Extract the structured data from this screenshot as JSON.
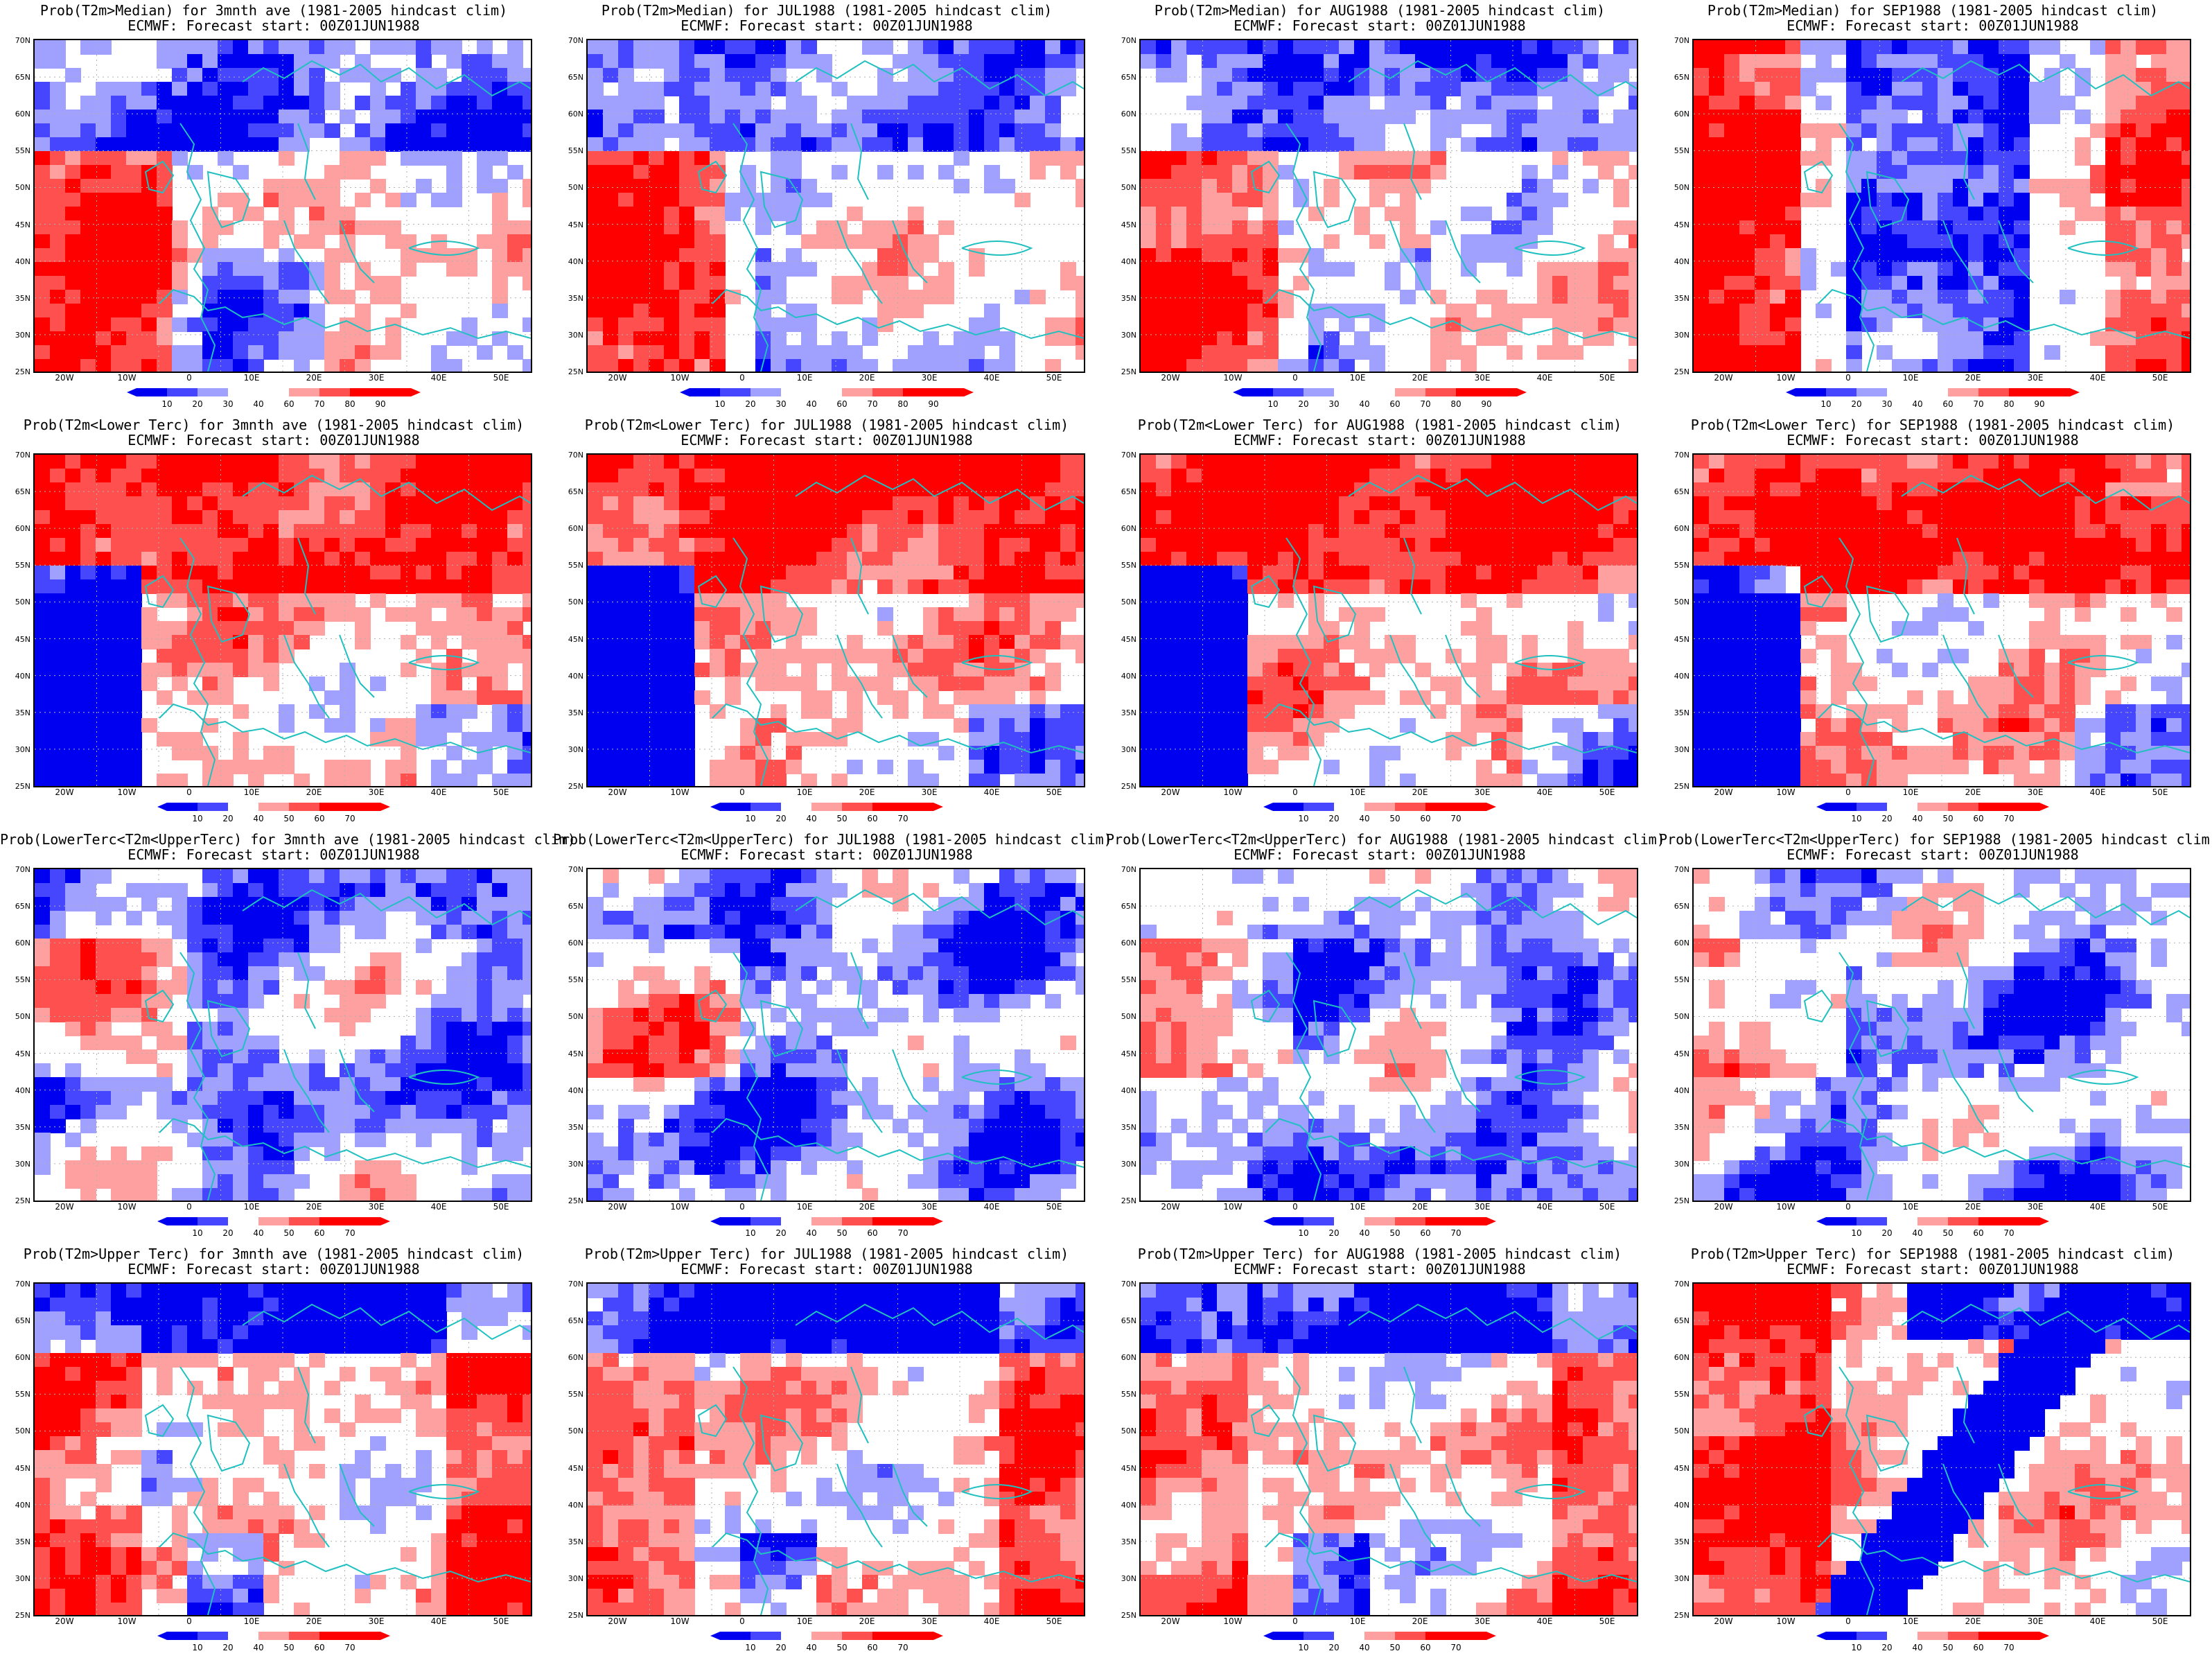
{
  "figure": {
    "colors": {
      "blue_dark": "#0000f0",
      "blue_mid": "#4646ff",
      "blue_light": "#a0a0ff",
      "red_light": "#ffa0a0",
      "red_mid": "#ff5050",
      "red_dark": "#ff0000",
      "coast": "#20c0c0",
      "grid": "#b0b0b0"
    },
    "y_ticks": [
      "70N",
      "65N",
      "60N",
      "55N",
      "50N",
      "45N",
      "40N",
      "35N",
      "30N",
      "25N"
    ],
    "x_ticks": [
      "20W",
      "10W",
      "0",
      "10E",
      "20E",
      "30E",
      "40E",
      "50E"
    ],
    "colorbar_sets": {
      "median": [
        "10",
        "20",
        "30",
        "40",
        "60",
        "70",
        "80",
        "90"
      ],
      "tercile": [
        "10",
        "20",
        "40",
        "50",
        "60",
        "70"
      ]
    },
    "rows": [
      {
        "cb": "median",
        "panels": [
          {
            "title": "Prob(T2m>Median) for 3mnth ave (1981-2005 hindcast clim)",
            "sub": "ECMWF: Forecast start: 00Z01JUN1988",
            "pattern": "mixed_bluenorth"
          },
          {
            "title": "Prob(T2m>Median) for JUL1988 (1981-2005 hindcast clim)",
            "sub": "ECMWF: Forecast start: 00Z01JUN1988",
            "pattern": "mixed_bluenorth"
          },
          {
            "title": "Prob(T2m>Median) for AUG1988 (1981-2005 hindcast clim)",
            "sub": "ECMWF: Forecast start: 00Z01JUN1988",
            "pattern": "mixed_bluenorth"
          },
          {
            "title": "Prob(T2m>Median) for SEP1988 (1981-2005 hindcast clim)",
            "sub": "ECMWF: Forecast start: 00Z01JUN1988",
            "pattern": "blue_center"
          }
        ]
      },
      {
        "cb": "tercile",
        "panels": [
          {
            "title": "Prob(T2m<Lower Terc) for 3mnth ave (1981-2005 hindcast clim)",
            "sub": "ECMWF: Forecast start: 00Z01JUN1988",
            "pattern": "red_with_blue_west"
          },
          {
            "title": "Prob(T2m<Lower Terc) for JUL1988 (1981-2005 hindcast clim)",
            "sub": "ECMWF: Forecast start: 00Z01JUN1988",
            "pattern": "red_with_blue_west"
          },
          {
            "title": "Prob(T2m<Lower Terc) for AUG1988 (1981-2005 hindcast clim)",
            "sub": "ECMWF: Forecast start: 00Z01JUN1988",
            "pattern": "red_with_blue_west"
          },
          {
            "title": "Prob(T2m<Lower Terc) for SEP1988 (1981-2005 hindcast clim)",
            "sub": "ECMWF: Forecast start: 00Z01JUN1988",
            "pattern": "red_with_blue_west"
          }
        ]
      },
      {
        "cb": "tercile",
        "panels": [
          {
            "title": "Prob(LowerTerc<T2m<UpperTerc) for 3mnth ave (1981-2005 hindcast clim)",
            "sub": "ECMWF: Forecast start: 00Z01JUN1988",
            "pattern": "blue_patchy"
          },
          {
            "title": "Prob(LowerTerc<T2m<UpperTerc) for JUL1988 (1981-2005 hindcast clim)",
            "sub": "ECMWF: Forecast start: 00Z01JUN1988",
            "pattern": "blue_patchy"
          },
          {
            "title": "Prob(LowerTerc<T2m<UpperTerc) for AUG1988 (1981-2005 hindcast clim)",
            "sub": "ECMWF: Forecast start: 00Z01JUN1988",
            "pattern": "blue_patchy"
          },
          {
            "title": "Prob(LowerTerc<T2m<UpperTerc) for SEP1988 (1981-2005 hindcast clim)",
            "sub": "ECMWF: Forecast start: 00Z01JUN1988",
            "pattern": "blue_patchy"
          }
        ]
      },
      {
        "cb": "tercile",
        "panels": [
          {
            "title": "Prob(T2m>Upper Terc) for 3mnth ave (1981-2005 hindcast clim)",
            "sub": "ECMWF: Forecast start: 00Z01JUN1988",
            "pattern": "red_with_blue_north"
          },
          {
            "title": "Prob(T2m>Upper Terc) for JUL1988 (1981-2005 hindcast clim)",
            "sub": "ECMWF: Forecast start: 00Z01JUN1988",
            "pattern": "red_with_blue_north"
          },
          {
            "title": "Prob(T2m>Upper Terc) for AUG1988 (1981-2005 hindcast clim)",
            "sub": "ECMWF: Forecast start: 00Z01JUN1988",
            "pattern": "red_with_blue_north"
          },
          {
            "title": "Prob(T2m>Upper Terc) for SEP1988 (1981-2005 hindcast clim)",
            "sub": "ECMWF: Forecast start: 00Z01JUN1988",
            "pattern": "blue_band"
          }
        ]
      }
    ]
  }
}
